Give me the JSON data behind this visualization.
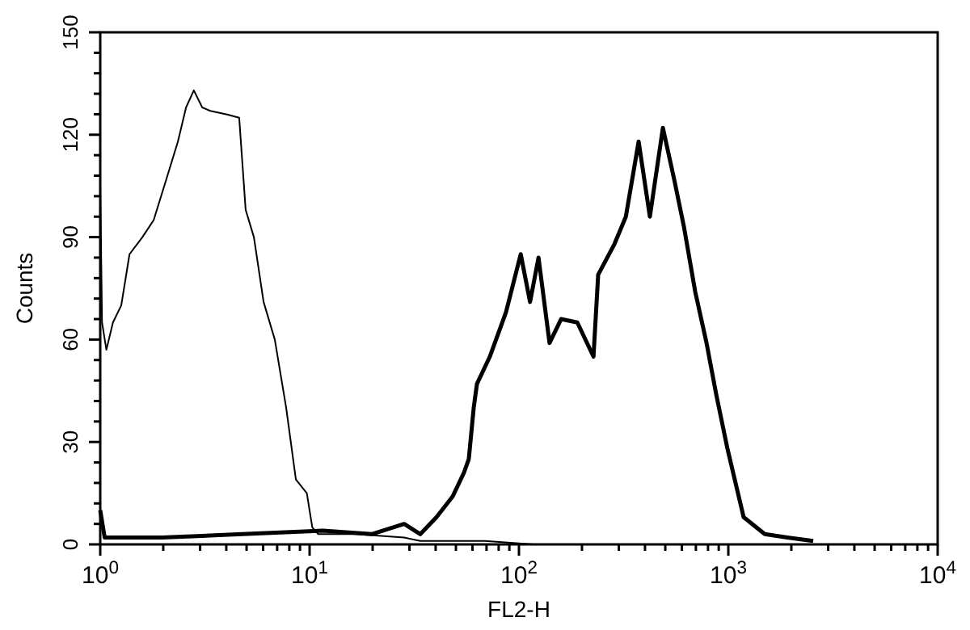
{
  "chart_data": {
    "type": "line",
    "xlabel": "FL2-H",
    "ylabel": "Counts",
    "log": "x",
    "grid": false,
    "marker": "none",
    "line_style": "solid",
    "xlim": [
      1,
      10000
    ],
    "ylim": [
      0,
      150
    ],
    "xticks": [
      {
        "value": 1,
        "label": "10$^{0}$"
      },
      {
        "value": 2,
        "label": null
      },
      {
        "value": 3,
        "label": null
      },
      {
        "value": 4,
        "label": null
      },
      {
        "value": 5,
        "label": null
      },
      {
        "value": 6,
        "label": null
      },
      {
        "value": 7,
        "label": null
      },
      {
        "value": 8,
        "label": null
      },
      {
        "value": 9,
        "label": null
      },
      {
        "value": 10,
        "label": "10$^{1}$"
      },
      {
        "value": 20,
        "label": null
      },
      {
        "value": 30,
        "label": null
      },
      {
        "value": 40,
        "label": null
      },
      {
        "value": 50,
        "label": null
      },
      {
        "value": 60,
        "label": null
      },
      {
        "value": 70,
        "label": null
      },
      {
        "value": 80,
        "label": null
      },
      {
        "value": 90,
        "label": null
      },
      {
        "value": 100,
        "label": "10$^{2}$"
      },
      {
        "value": 200,
        "label": null
      },
      {
        "value": 300,
        "label": null
      },
      {
        "value": 400,
        "label": null
      },
      {
        "value": 500,
        "label": null
      },
      {
        "value": 600,
        "label": null
      },
      {
        "value": 700,
        "label": null
      },
      {
        "value": 800,
        "label": null
      },
      {
        "value": 900,
        "label": null
      },
      {
        "value": 1000,
        "label": "10$^{3}$"
      },
      {
        "value": 2000,
        "label": null
      },
      {
        "value": 3000,
        "label": null
      },
      {
        "value": 4000,
        "label": null
      },
      {
        "value": 5000,
        "label": null
      },
      {
        "value": 6000,
        "label": null
      },
      {
        "value": 7000,
        "label": null
      },
      {
        "value": 8000,
        "label": null
      },
      {
        "value": 9000,
        "label": null
      },
      {
        "value": 10000,
        "label": "10$^{4}$"
      }
    ],
    "yticks": [
      0,
      {
        "value": 6,
        "label": null
      },
      {
        "value": 12,
        "label": null
      },
      {
        "value": 18,
        "label": null
      },
      {
        "value": 24,
        "label": null
      },
      30,
      {
        "value": 36,
        "label": null
      },
      {
        "value": 42,
        "label": null
      },
      {
        "value": 48,
        "label": null
      },
      {
        "value": 54,
        "label": null
      },
      60,
      {
        "value": 66,
        "label": null
      },
      {
        "value": 72,
        "label": null
      },
      {
        "value": 78,
        "label": null
      },
      {
        "value": 84,
        "label": null
      },
      90,
      {
        "value": 96,
        "label": null
      },
      {
        "value": 102,
        "label": null
      },
      {
        "value": 108,
        "label": null
      },
      {
        "value": 114,
        "label": null
      },
      120,
      {
        "value": 126,
        "label": null
      },
      {
        "value": 132,
        "label": null
      },
      {
        "value": 138,
        "label": null
      },
      {
        "value": 144,
        "label": null
      },
      150
    ],
    "series": [
      {
        "color": "#000000",
        "x": [
          1,
          1.02,
          1.07,
          1.15,
          1.26,
          1.38,
          1.59,
          1.8,
          2.07,
          2.35,
          2.57,
          2.8,
          3.07,
          3.35,
          4.0,
          4.61,
          4.95,
          5.42,
          6.03,
          6.82,
          7.73,
          8.6,
          9.7,
          10.3,
          11.0,
          16.6,
          28.3,
          33.8,
          69,
          117
        ],
        "values": [
          106,
          65,
          57,
          65,
          70,
          85,
          90,
          95,
          107,
          118,
          128,
          133,
          128,
          127,
          126,
          125,
          98,
          90,
          71,
          60,
          40,
          19,
          15,
          5,
          3,
          3,
          2,
          1,
          1,
          0
        ]
      },
      {
        "color": "#000000",
        "x": [
          1,
          1.05,
          1.97,
          4.78,
          11.6,
          19.8,
          28.3,
          33.8,
          40.4,
          48.2,
          54.6,
          57.6,
          60.8,
          63.0,
          72.6,
          86.7,
          102,
          113,
          124,
          140,
          159,
          190,
          227,
          239,
          286,
          324,
          373,
          422,
          487,
          551,
          614,
          695,
          787,
          875,
          991,
          1183,
          1493,
          1914,
          2543
        ],
        "values": [
          10,
          2,
          2,
          3,
          4,
          3,
          6,
          3,
          8,
          14,
          21,
          25,
          40,
          47,
          55,
          68,
          85,
          71,
          84,
          59,
          66,
          65,
          55,
          79,
          88,
          96,
          118,
          96,
          122,
          107,
          93,
          74,
          59,
          44,
          28,
          8,
          3,
          2,
          1
        ]
      }
    ]
  }
}
